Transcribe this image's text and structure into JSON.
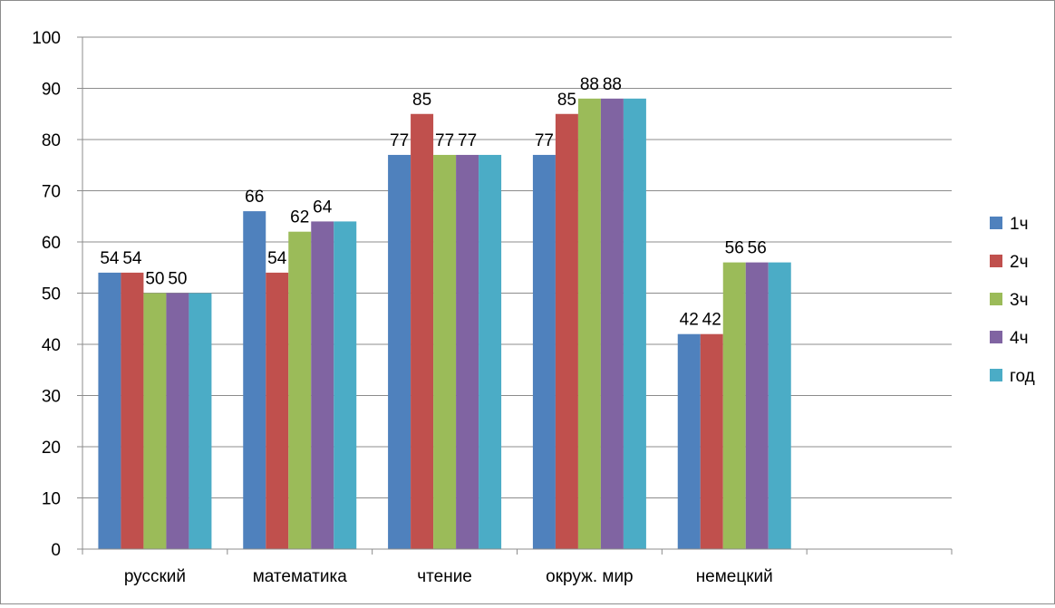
{
  "chart_data": {
    "type": "bar",
    "title": "",
    "xlabel": "",
    "ylabel": "",
    "categories": [
      "русский",
      "математика",
      "чтение",
      "окруж. мир",
      "немецкий",
      ""
    ],
    "series": [
      {
        "name": "1ч",
        "color": "#4F81BD",
        "values": [
          54,
          66,
          77,
          77,
          42,
          null
        ]
      },
      {
        "name": "2ч",
        "color": "#C0504D",
        "values": [
          54,
          54,
          85,
          85,
          42,
          null
        ]
      },
      {
        "name": "3ч",
        "color": "#9BBB59",
        "values": [
          50,
          62,
          77,
          88,
          56,
          null
        ]
      },
      {
        "name": "4ч",
        "color": "#8064A2",
        "values": [
          50,
          64,
          77,
          88,
          56,
          null
        ]
      },
      {
        "name": "год",
        "color": "#4BACC6",
        "values": [
          50,
          64,
          77,
          88,
          56,
          null
        ]
      }
    ],
    "data_labels": [
      [
        "54",
        "54",
        "50",
        "50",
        ""
      ],
      [
        "66",
        "54",
        "62",
        "64",
        ""
      ],
      [
        "77",
        "85",
        "77",
        "77",
        ""
      ],
      [
        "77",
        "85",
        "88",
        "88",
        ""
      ],
      [
        "42",
        "42",
        "56",
        "56",
        ""
      ]
    ],
    "ylim": [
      0,
      100
    ],
    "yticks": [
      0,
      10,
      20,
      30,
      40,
      50,
      60,
      70,
      80,
      90,
      100
    ],
    "grid": true,
    "legend_position": "right"
  }
}
